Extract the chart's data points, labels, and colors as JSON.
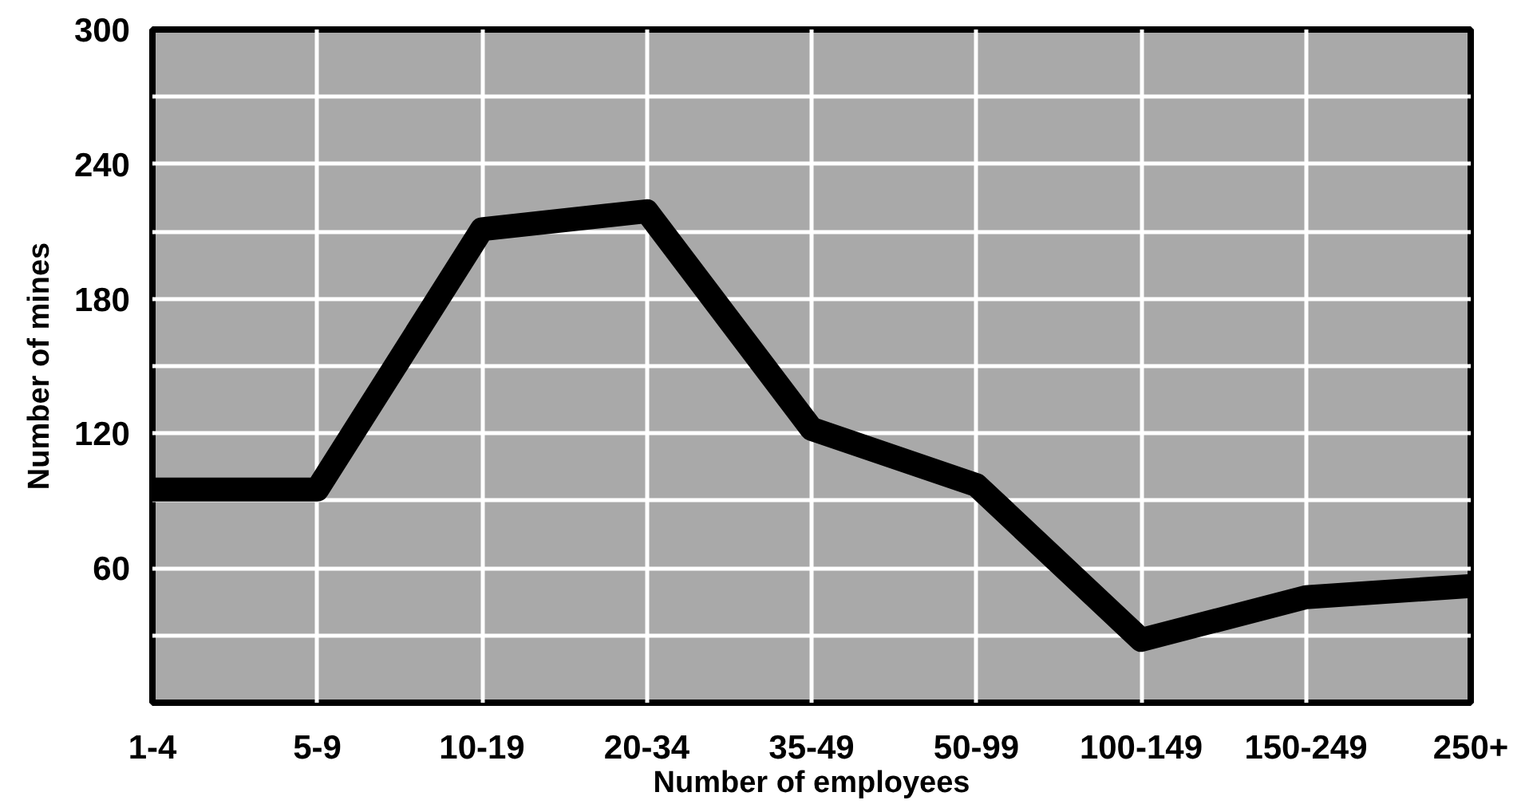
{
  "chart_data": {
    "type": "line",
    "xlabel": "Number of employees",
    "ylabel": "Number of mines",
    "categories": [
      "1-4",
      "5-9",
      "10-19",
      "20-34",
      "35-49",
      "50-99",
      "100-149",
      "150-249",
      "250+"
    ],
    "series": [
      {
        "color": "#000000",
        "values": [
          95,
          95,
          211,
          219,
          122,
          97,
          28,
          47,
          52
        ]
      }
    ],
    "ylim": [
      0,
      300
    ],
    "yticks": [
      {
        "value": 0,
        "label": null
      },
      {
        "value": 30,
        "label": null
      },
      60,
      {
        "value": 90,
        "label": null
      },
      120,
      {
        "value": 150,
        "label": null
      },
      180,
      {
        "value": 210,
        "label": null
      },
      240,
      {
        "value": 270,
        "label": null
      },
      300
    ],
    "grid": true,
    "marker": "none",
    "line_style": "solid"
  }
}
